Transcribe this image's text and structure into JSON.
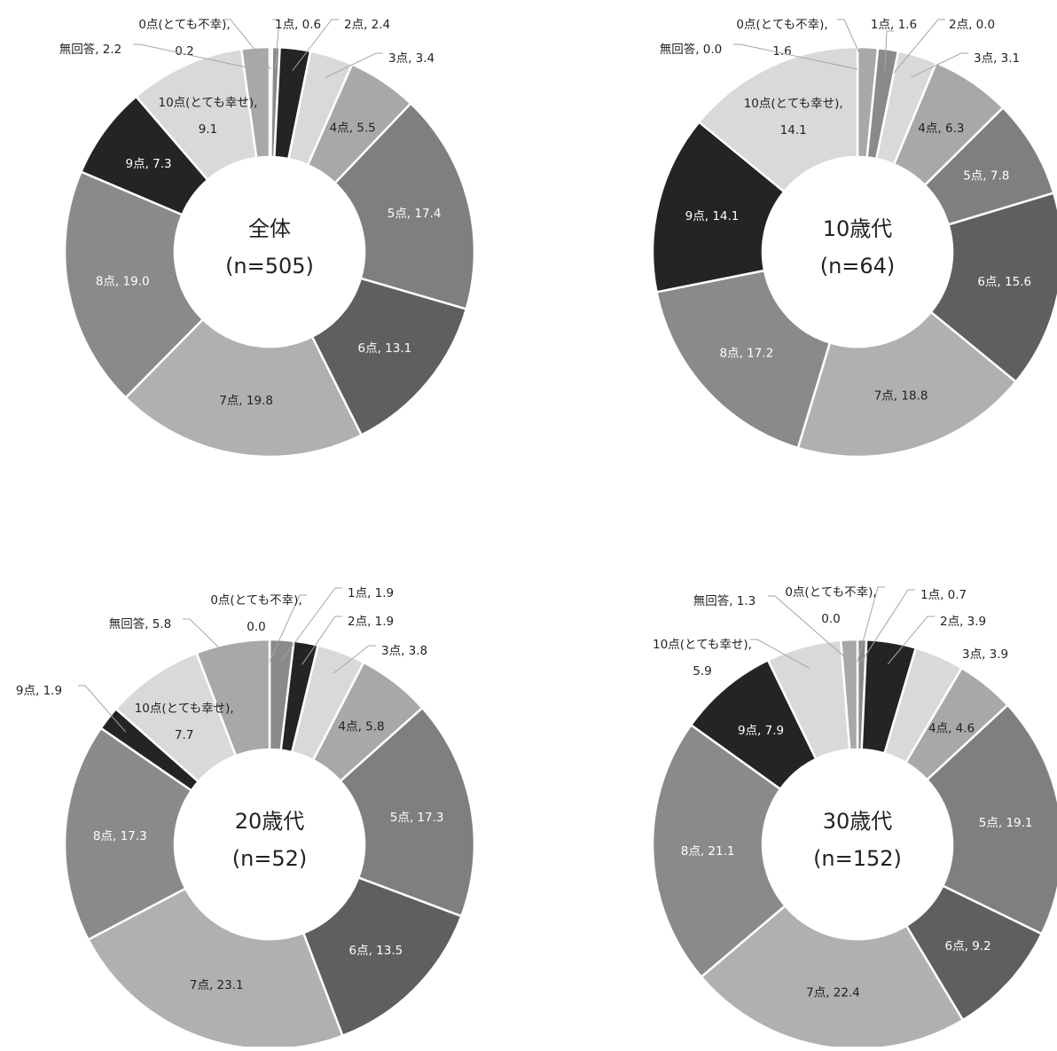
{
  "chart_data": [
    {
      "type": "pie",
      "title": "全体",
      "subtitle": "(n=505)",
      "categories": [
        "0点(とても不幸)",
        "1点",
        "2点",
        "3点",
        "4点",
        "5点",
        "6点",
        "7点",
        "8点",
        "9点",
        "10点(とても幸せ)",
        "無回答"
      ],
      "values": [
        0.2,
        0.6,
        2.4,
        3.4,
        5.5,
        17.4,
        13.1,
        19.8,
        19.0,
        7.3,
        9.1,
        2.2
      ],
      "labels": [
        "0点(とても不幸),|0.2",
        "1点, 0.6",
        "2点, 2.4",
        "3点, 3.4",
        "4点, 5.5",
        "5点, 17.4",
        "6点, 13.1",
        "7点, 19.8",
        "8点, 19.0",
        "9点, 7.3",
        "10点(とても幸せ),|9.1",
        "無回答, 2.2"
      ]
    },
    {
      "type": "pie",
      "title": "10歳代",
      "subtitle": "(n=64)",
      "categories": [
        "0点(とても不幸)",
        "1点",
        "2点",
        "3点",
        "4点",
        "5点",
        "6点",
        "7点",
        "8点",
        "9点",
        "10点(とても幸せ)",
        "無回答"
      ],
      "values": [
        1.6,
        1.6,
        0.0,
        3.1,
        6.3,
        7.8,
        15.6,
        18.8,
        17.2,
        14.1,
        14.1,
        0.0
      ],
      "labels": [
        "0点(とても不幸),|1.6",
        "1点, 1.6",
        "2点, 0.0",
        "3点, 3.1",
        "4点, 6.3",
        "5点, 7.8",
        "6点, 15.6",
        "7点, 18.8",
        "8点, 17.2",
        "9点, 14.1",
        "10点(とても幸せ),|14.1",
        "無回答, 0.0"
      ]
    },
    {
      "type": "pie",
      "title": "20歳代",
      "subtitle": "(n=52)",
      "categories": [
        "0点(とても不幸)",
        "1点",
        "2点",
        "3点",
        "4点",
        "5点",
        "6点",
        "7点",
        "8点",
        "9点",
        "10点(とても幸せ)",
        "無回答"
      ],
      "values": [
        0.0,
        1.9,
        1.9,
        3.8,
        5.8,
        17.3,
        13.5,
        23.1,
        17.3,
        1.9,
        7.7,
        5.8
      ],
      "labels": [
        "0点(とても不幸),|0.0",
        "1点, 1.9",
        "2点, 1.9",
        "3点, 3.8",
        "4点, 5.8",
        "5点, 17.3",
        "6点, 13.5",
        "7点, 23.1",
        "8点, 17.3",
        "9点, 1.9",
        "10点(とても幸せ),|7.7",
        "無回答, 5.8"
      ]
    },
    {
      "type": "pie",
      "title": "30歳代",
      "subtitle": "(n=152)",
      "categories": [
        "0点(とても不幸)",
        "1点",
        "2点",
        "3点",
        "4点",
        "5点",
        "6点",
        "7点",
        "8点",
        "9点",
        "10点(とても幸せ)",
        "無回答"
      ],
      "values": [
        0.0,
        0.7,
        3.9,
        3.9,
        4.6,
        19.1,
        9.2,
        22.4,
        21.1,
        7.9,
        5.9,
        1.3
      ],
      "labels": [
        "0点(とても不幸),|0.0",
        "1点, 0.7",
        "2点, 3.9",
        "3点, 3.9",
        "4点, 4.6",
        "5点, 19.1",
        "6点, 9.2",
        "7点, 22.4",
        "8点, 21.1",
        "9点, 7.9",
        "10点(とても幸せ),|5.9",
        "無回答, 1.3"
      ]
    }
  ],
  "colors": {
    "slices": [
      "#a8a8a8",
      "#8a8a8a",
      "#242424",
      "#d9d9d9",
      "#a8a8a8",
      "#7f7f7f",
      "#5f5f5f",
      "#b0b0b0",
      "#8a8a8a",
      "#242424",
      "#d9d9d9",
      "#a8a8a8"
    ],
    "label_light": "#ffffff",
    "label_dark": "#222222",
    "border": "#ffffff",
    "leader": "#a6a6a6"
  }
}
